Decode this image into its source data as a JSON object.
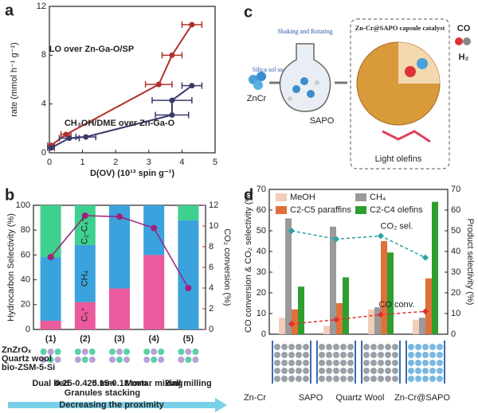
{
  "chart_data": [
    {
      "type": "scatter",
      "panel_label": "a",
      "xlabel": "D(OV) (10¹³ spin g⁻¹)",
      "ylabel": "rate (mmol h⁻¹ g⁻¹)",
      "xlim": [
        0,
        5
      ],
      "xticks": [
        0,
        1,
        2,
        3,
        4,
        5
      ],
      "ylim": [
        0,
        12
      ],
      "yticks": [
        0,
        4,
        8,
        12
      ],
      "series": [
        {
          "name": "LO over Zn-Ga-O/SP",
          "color": "#b0302a",
          "x": [
            0.05,
            0.5,
            3.3,
            3.7,
            4.3
          ],
          "values": [
            0.6,
            1.5,
            5.6,
            8.0,
            10.5
          ],
          "xerr": [
            0.1,
            0.15,
            0.4,
            0.3,
            0.3
          ]
        },
        {
          "name": "CH₃OH/DME over Zn-Ga-O",
          "color": "#3a3a6a",
          "x": [
            0.05,
            0.6,
            1.1,
            3.7,
            3.7,
            4.3
          ],
          "values": [
            0.4,
            1.2,
            1.3,
            3.1,
            4.3,
            5.5
          ],
          "xerr": [
            0.1,
            0.3,
            0.3,
            0.5,
            0.6,
            0.3
          ]
        }
      ]
    },
    {
      "type": "stacked_bar",
      "panel_label": "b",
      "ylabel": "Hydrocarbon Selectivity (%)",
      "y2label": "CO₂ conversion (%)",
      "categories": [
        "(1)",
        "(2)",
        "(3)",
        "(4)",
        "(5)"
      ],
      "ylim": [
        0,
        100
      ],
      "yticks": [
        0,
        20,
        40,
        60,
        80,
        100
      ],
      "y2lim": [
        0,
        12
      ],
      "y2ticks": [
        0,
        2,
        4,
        6,
        8,
        10,
        12
      ],
      "y2color": "#b0207e",
      "series": [
        {
          "name": "C₅⁺",
          "color": "#ea5a9c",
          "values": [
            7,
            22,
            33,
            60,
            0
          ]
        },
        {
          "name": "CH₄",
          "color": "#3aa2dc",
          "values": [
            51,
            46,
            67,
            40,
            88
          ]
        },
        {
          "name": "C₂-C₄⁼",
          "color": "#3ed08e",
          "values": [
            42,
            32,
            0,
            0,
            12
          ]
        },
        {
          "axis": "y2",
          "color": "#a0207a",
          "values": [
            7,
            11,
            10.9,
            9.8,
            4
          ]
        }
      ],
      "layer_legend": [
        "ZnZrOₓ",
        "Quartz wool",
        "bio-ZSM-5-Si"
      ],
      "captions": [
        "Dual bed",
        "0.25-0.425 mm",
        "0.15-0.18 mm",
        "Mortar mixing",
        "Ball milling"
      ],
      "group_caption": "Granules stacking",
      "arrow_caption": "Decreasing the proximity"
    },
    {
      "type": "grouped_bar",
      "panel_label": "d",
      "ylabel": "CO conversion & CO₂ selectivity (%)",
      "y2label": "Product selectivity (%)",
      "categories": [
        null,
        null,
        null,
        null
      ],
      "ylim": [
        0,
        70
      ],
      "yticks": [
        0,
        10,
        20,
        30,
        40,
        50,
        60,
        70
      ],
      "y2lim": [
        0,
        70
      ],
      "y2ticks": [
        0,
        10,
        20,
        30,
        40,
        50,
        60,
        70
      ],
      "series": [
        {
          "name": "MeOH",
          "color": "#f2cdb8",
          "axis": "y2",
          "values": [
            8,
            4,
            12,
            7
          ]
        },
        {
          "name": "CH₄",
          "color": "#9a9a9a",
          "axis": "y2",
          "values": [
            56,
            52,
            13,
            8
          ]
        },
        {
          "name": "C2-C5 paraffins",
          "color": "#e0703a",
          "axis": "y2",
          "values": [
            12,
            15,
            45,
            27
          ]
        },
        {
          "name": "C2-C4 olefins",
          "color": "#2e9e2e",
          "axis": "y2",
          "values": [
            23,
            27.5,
            39.5,
            64
          ]
        },
        {
          "name": "CO₂ sel.",
          "color": "#2aa0a8",
          "type": "line",
          "values": [
            50,
            46,
            47.5,
            37
          ]
        },
        {
          "name": "CO conv.",
          "color": "#e03030",
          "type": "line",
          "values": [
            5,
            7,
            9.5,
            11
          ]
        }
      ],
      "material_legend": [
        "Zn-Cr",
        "SAPO",
        "Quartz Wool",
        "Zn-Cr@SAPO"
      ]
    }
  ],
  "diagram": {
    "panel_label": "c",
    "zncr": "ZnCr",
    "soaking": "Silica sol soaking",
    "shaking": "Shaking and Rotating",
    "sapo": "SAPO",
    "capsule": "Zn-Cr@SAPO capsule catalyst",
    "co": "CO",
    "h2": "H₂",
    "olefins": "Light olefins"
  }
}
